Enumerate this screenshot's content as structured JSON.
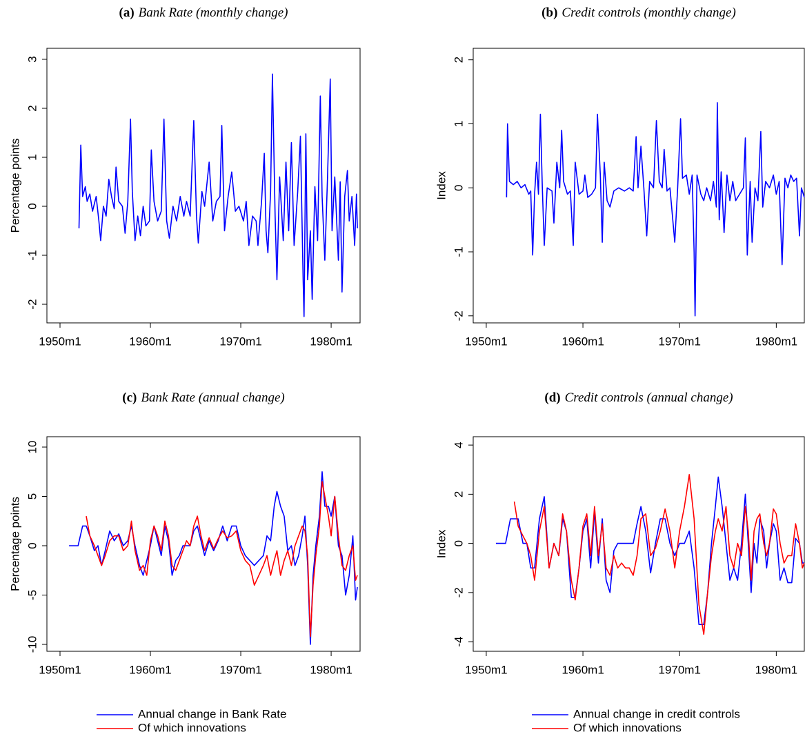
{
  "chart_data": [
    {
      "type": "line",
      "label": "(a)",
      "title": "Bank Rate (monthly change)",
      "ylabel": "Percentage points",
      "xlim": [
        1948.55,
        1983.2
      ],
      "ylim": [
        -2.38,
        3.225
      ],
      "xticks": [
        {
          "value": 1950,
          "label": "1950m1"
        },
        {
          "value": 1960,
          "label": "1960m1"
        },
        {
          "value": 1970,
          "label": "1970m1"
        },
        {
          "value": 1980,
          "label": "1980m1"
        }
      ],
      "yticks": [
        -2,
        -1,
        0,
        1,
        2,
        3
      ],
      "x": [
        1952.1,
        1952.3,
        1952.5,
        1952.8,
        1953.0,
        1953.3,
        1953.6,
        1954.0,
        1954.3,
        1954.5,
        1954.8,
        1955.1,
        1955.4,
        1955.7,
        1956.0,
        1956.2,
        1956.5,
        1956.9,
        1957.2,
        1957.5,
        1957.8,
        1958.0,
        1958.3,
        1958.6,
        1958.9,
        1959.2,
        1959.5,
        1959.9,
        1960.1,
        1960.4,
        1960.8,
        1961.2,
        1961.5,
        1961.8,
        1962.1,
        1962.5,
        1962.9,
        1963.3,
        1963.7,
        1964.0,
        1964.4,
        1964.8,
        1965.1,
        1965.3,
        1965.7,
        1966.0,
        1966.5,
        1966.9,
        1967.3,
        1967.7,
        1967.9,
        1968.2,
        1968.6,
        1969.0,
        1969.4,
        1969.8,
        1970.3,
        1970.6,
        1970.9,
        1971.3,
        1971.7,
        1971.9,
        1972.3,
        1972.6,
        1972.8,
        1973.0,
        1973.3,
        1973.5,
        1973.8,
        1974.0,
        1974.3,
        1974.7,
        1975.0,
        1975.3,
        1975.6,
        1975.9,
        1976.3,
        1976.6,
        1976.9,
        1977.0,
        1977.2,
        1977.4,
        1977.7,
        1977.9,
        1978.2,
        1978.5,
        1978.8,
        1979.0,
        1979.3,
        1979.6,
        1979.9,
        1980.1,
        1980.4,
        1980.8,
        1981.0,
        1981.2,
        1981.5,
        1981.8,
        1982.0,
        1982.3,
        1982.6,
        1982.8,
        1982.9
      ],
      "series": [
        {
          "color": "#0000ff",
          "values": [
            -0.45,
            1.25,
            0.2,
            0.4,
            0.1,
            0.25,
            -0.1,
            0.2,
            -0.3,
            -0.7,
            0.0,
            -0.2,
            0.55,
            0.2,
            -0.05,
            0.8,
            0.1,
            0.0,
            -0.55,
            0.1,
            1.78,
            0.3,
            -0.7,
            -0.2,
            -0.6,
            0.0,
            -0.4,
            -0.3,
            1.15,
            0.1,
            -0.3,
            -0.1,
            1.78,
            -0.3,
            -0.65,
            0.0,
            -0.3,
            0.2,
            -0.2,
            0.1,
            -0.2,
            1.75,
            -0.2,
            -0.75,
            0.3,
            0.0,
            0.9,
            -0.3,
            0.1,
            0.2,
            1.65,
            -0.5,
            0.2,
            0.7,
            -0.1,
            0.0,
            -0.3,
            0.1,
            -0.8,
            -0.2,
            -0.3,
            -0.8,
            0.1,
            1.08,
            -0.5,
            -0.95,
            0.3,
            2.7,
            -0.2,
            -1.5,
            0.6,
            -0.7,
            0.9,
            -0.5,
            1.3,
            -0.8,
            0.3,
            1.43,
            -1.5,
            -2.25,
            1.48,
            -1.5,
            -0.5,
            -1.9,
            0.4,
            -0.7,
            2.25,
            0.2,
            -1.1,
            0.6,
            2.6,
            -0.5,
            0.6,
            -1.1,
            0.5,
            -1.75,
            0.2,
            0.73,
            -0.3,
            0.2,
            -0.8,
            0.25,
            -0.45
          ]
        }
      ]
    },
    {
      "type": "line",
      "label": "(b)",
      "title": "Credit controls (monthly change)",
      "ylabel": "Index",
      "xlim": [
        1948.65,
        1982.9
      ],
      "ylim": [
        -2.11,
        2.18
      ],
      "xticks": [
        {
          "value": 1950,
          "label": "1950m1"
        },
        {
          "value": 1960,
          "label": "1960m1"
        },
        {
          "value": 1970,
          "label": "1970m1"
        },
        {
          "value": 1980,
          "label": "1980m1"
        }
      ],
      "yticks": [
        -2,
        -1,
        0,
        1,
        2
      ],
      "x": [
        1952.1,
        1952.2,
        1952.4,
        1952.8,
        1953.2,
        1953.6,
        1954.0,
        1954.4,
        1954.6,
        1954.8,
        1955.0,
        1955.2,
        1955.4,
        1955.6,
        1955.8,
        1956.0,
        1956.3,
        1956.8,
        1957.0,
        1957.3,
        1957.6,
        1957.8,
        1958.0,
        1958.4,
        1958.7,
        1959.0,
        1959.2,
        1959.6,
        1960.0,
        1960.2,
        1960.5,
        1960.9,
        1961.3,
        1961.5,
        1961.8,
        1962.0,
        1962.2,
        1962.5,
        1962.8,
        1963.2,
        1963.7,
        1964.3,
        1964.8,
        1965.2,
        1965.5,
        1965.7,
        1966.0,
        1966.3,
        1966.6,
        1966.9,
        1967.3,
        1967.6,
        1967.9,
        1968.2,
        1968.4,
        1968.7,
        1969.0,
        1969.5,
        1969.8,
        1970.1,
        1970.3,
        1970.7,
        1971.0,
        1971.3,
        1971.5,
        1971.6,
        1971.8,
        1972.2,
        1972.5,
        1972.8,
        1973.2,
        1973.5,
        1973.8,
        1973.9,
        1974.1,
        1974.3,
        1974.6,
        1974.9,
        1975.2,
        1975.5,
        1975.8,
        1976.2,
        1976.6,
        1976.8,
        1977.0,
        1977.3,
        1977.5,
        1977.8,
        1978.1,
        1978.4,
        1978.6,
        1978.9,
        1979.3,
        1979.7,
        1980.0,
        1980.3,
        1980.6,
        1980.9,
        1981.2,
        1981.5,
        1981.8,
        1982.1,
        1982.4,
        1982.6,
        1982.9
      ],
      "series": [
        {
          "color": "#0000ff",
          "values": [
            -0.15,
            1.0,
            0.1,
            0.05,
            0.1,
            0.0,
            0.05,
            -0.1,
            -0.05,
            -1.05,
            -0.1,
            0.4,
            -0.1,
            1.15,
            0.0,
            -0.9,
            0.0,
            -0.05,
            -0.55,
            0.4,
            0.0,
            0.9,
            0.1,
            -0.1,
            -0.05,
            -0.9,
            0.4,
            -0.1,
            -0.05,
            0.2,
            -0.15,
            -0.1,
            0.0,
            1.15,
            0.2,
            -0.85,
            0.4,
            -0.2,
            -0.3,
            -0.05,
            0.0,
            -0.05,
            0.0,
            -0.05,
            0.8,
            0.0,
            0.65,
            0.0,
            -0.75,
            0.1,
            0.0,
            1.05,
            0.1,
            0.0,
            0.6,
            -0.05,
            0.0,
            -0.85,
            0.0,
            1.08,
            0.15,
            0.2,
            -0.1,
            0.2,
            -1.0,
            -2.0,
            0.2,
            -0.1,
            -0.2,
            0.0,
            -0.2,
            0.1,
            -0.3,
            1.33,
            -0.5,
            0.25,
            -0.7,
            0.2,
            -0.2,
            0.1,
            -0.2,
            -0.1,
            0.0,
            0.78,
            -1.05,
            0.1,
            -0.85,
            0.0,
            -0.2,
            0.88,
            -0.3,
            0.1,
            0.0,
            0.2,
            -0.1,
            0.1,
            -1.2,
            0.15,
            0.0,
            0.2,
            0.1,
            0.15,
            -0.75,
            0.0,
            -0.15
          ]
        }
      ]
    },
    {
      "type": "line",
      "label": "(c)",
      "title": "Bank Rate (annual change)",
      "ylabel": "Percentage points",
      "xlim": [
        1948.55,
        1983.2
      ],
      "ylim": [
        -10.7,
        11.05
      ],
      "xticks": [
        {
          "value": 1950,
          "label": "1950m1"
        },
        {
          "value": 1960,
          "label": "1960m1"
        },
        {
          "value": 1970,
          "label": "1970m1"
        },
        {
          "value": 1980,
          "label": "1980m1"
        }
      ],
      "yticks": [
        -10,
        -5,
        0,
        5,
        10
      ],
      "x": [
        1951.0,
        1952.0,
        1952.5,
        1952.9,
        1953.3,
        1953.8,
        1954.2,
        1954.6,
        1955.0,
        1955.5,
        1956.0,
        1956.5,
        1957.0,
        1957.5,
        1957.9,
        1958.3,
        1958.8,
        1959.2,
        1959.6,
        1960.0,
        1960.4,
        1960.8,
        1961.2,
        1961.6,
        1962.0,
        1962.4,
        1962.8,
        1963.2,
        1963.6,
        1964.0,
        1964.4,
        1964.8,
        1965.2,
        1965.6,
        1966.0,
        1966.5,
        1967.0,
        1967.5,
        1968.0,
        1968.5,
        1969.0,
        1969.5,
        1970.0,
        1970.5,
        1971.0,
        1971.5,
        1972.0,
        1972.5,
        1972.9,
        1973.3,
        1973.7,
        1974.0,
        1974.4,
        1974.8,
        1975.2,
        1975.6,
        1976.0,
        1976.4,
        1976.8,
        1977.1,
        1977.4,
        1977.7,
        1978.0,
        1978.3,
        1978.7,
        1979.0,
        1979.3,
        1979.7,
        1980.0,
        1980.4,
        1980.8,
        1981.2,
        1981.6,
        1982.0,
        1982.4,
        1982.7,
        1982.9
      ],
      "legend": "bottom",
      "series": [
        {
          "name": "Annual change in Bank Rate",
          "color": "#0000ff",
          "values": [
            0,
            0,
            2,
            2,
            1,
            -0.5,
            0,
            -2,
            -0.5,
            1.5,
            0.5,
            1.2,
            0,
            0.5,
            2,
            0,
            -2,
            -3,
            -1.5,
            0,
            2,
            0.5,
            -1,
            2,
            0.5,
            -3,
            -1.5,
            -1,
            0,
            0,
            0,
            1.5,
            2,
            0.5,
            -1,
            0.5,
            -0.5,
            0.5,
            2,
            0.5,
            2,
            2,
            0,
            -1,
            -1.5,
            -2,
            -1.5,
            -1,
            1,
            0.5,
            4,
            5.5,
            4,
            3,
            -0.5,
            0,
            -2,
            -1,
            1,
            3,
            -2,
            -10,
            -3,
            0,
            3,
            7.5,
            4,
            4,
            3,
            5,
            0,
            -1,
            -5,
            -3,
            1,
            -5.5,
            -4.2
          ]
        },
        {
          "name": "Of which innovations",
          "color": "#ff0000",
          "values": [
            null,
            null,
            null,
            3,
            1,
            0,
            -1,
            -2,
            -1,
            0.5,
            1,
            1,
            -0.5,
            0,
            2.5,
            -0.5,
            -2.5,
            -2,
            -3,
            0.5,
            2,
            1,
            -0.5,
            2.5,
            1,
            -2,
            -2.5,
            -1.5,
            -0.5,
            0.5,
            0,
            2,
            3,
            1,
            -0.5,
            0.8,
            -0.3,
            0.7,
            1.5,
            0.8,
            1,
            1.5,
            -0.5,
            -1.5,
            -2,
            -4,
            -3,
            -2,
            -1,
            -3,
            -1.5,
            -0.5,
            -3,
            -1.5,
            -0.5,
            -2,
            0,
            1,
            2,
            1.5,
            -1,
            -9.2,
            -4,
            -1,
            2,
            6.5,
            5,
            3,
            1,
            5,
            1,
            -2,
            -2.5,
            -1,
            0,
            -3.5,
            -3
          ]
        }
      ]
    },
    {
      "type": "line",
      "label": "(d)",
      "title": "Credit controls (annual change)",
      "ylabel": "Index",
      "xlim": [
        1948.65,
        1982.9
      ],
      "ylim": [
        -4.39,
        4.34
      ],
      "xticks": [
        {
          "value": 1950,
          "label": "1950m1"
        },
        {
          "value": 1960,
          "label": "1960m1"
        },
        {
          "value": 1970,
          "label": "1970m1"
        },
        {
          "value": 1980,
          "label": "1980m1"
        }
      ],
      "yticks": [
        -4,
        -2,
        0,
        2,
        4
      ],
      "x": [
        1951.0,
        1952.0,
        1952.5,
        1952.9,
        1953.3,
        1953.8,
        1954.2,
        1954.6,
        1955.0,
        1955.5,
        1956.0,
        1956.5,
        1957.0,
        1957.5,
        1957.9,
        1958.3,
        1958.8,
        1959.2,
        1959.6,
        1960.0,
        1960.4,
        1960.8,
        1961.2,
        1961.6,
        1962.0,
        1962.4,
        1962.8,
        1963.2,
        1963.6,
        1964.0,
        1964.4,
        1964.8,
        1965.2,
        1965.6,
        1966.0,
        1966.5,
        1967.0,
        1967.5,
        1968.0,
        1968.5,
        1969.0,
        1969.5,
        1970.0,
        1970.5,
        1971.0,
        1971.5,
        1972.0,
        1972.5,
        1972.9,
        1973.3,
        1973.7,
        1974.0,
        1974.4,
        1974.8,
        1975.2,
        1975.6,
        1976.0,
        1976.4,
        1976.8,
        1977.1,
        1977.4,
        1977.7,
        1978.0,
        1978.3,
        1978.7,
        1979.0,
        1979.3,
        1979.7,
        1980.0,
        1980.4,
        1980.8,
        1981.2,
        1981.6,
        1982.0,
        1982.4,
        1982.7,
        1982.9
      ],
      "legend": "bottom",
      "series": [
        {
          "name": "Annual change in credit controls",
          "color": "#0000ff",
          "values": [
            0,
            0,
            1,
            1,
            1,
            0,
            0,
            -1,
            -1,
            1,
            1.9,
            -1,
            0,
            -0.5,
            1,
            0.5,
            -2.2,
            -2.2,
            -1,
            0.5,
            1,
            -1,
            1.3,
            -0.8,
            1,
            -1.5,
            -2,
            -0.3,
            0,
            0,
            0,
            0,
            0,
            0.8,
            1.5,
            0.5,
            -1.2,
            0,
            1,
            1,
            0,
            -0.5,
            0,
            0,
            0.5,
            -1,
            -3.3,
            -3.3,
            -2,
            0,
            1.5,
            2.7,
            1.5,
            0,
            -1.5,
            -1,
            -1.5,
            0,
            2,
            0,
            -2,
            0,
            -0.8,
            1,
            0.5,
            -1,
            0,
            0.8,
            0.5,
            -1.5,
            -1,
            -1.6,
            -1.6,
            0.2,
            0,
            -0.8,
            -0.8
          ]
        },
        {
          "name": "Of which innovations",
          "color": "#ff0000",
          "values": [
            null,
            null,
            null,
            1.7,
            0.7,
            0.3,
            0,
            -0.5,
            -1.5,
            0.5,
            1.5,
            -1,
            0,
            -0.5,
            1.2,
            0.5,
            -1.5,
            -2.3,
            -1,
            0.7,
            1.2,
            -0.5,
            1.5,
            -0.5,
            0.8,
            -1,
            -1.3,
            -0.5,
            -1,
            -0.8,
            -1,
            -1,
            -1.3,
            -0.5,
            1,
            1.2,
            -0.5,
            -0.2,
            0.5,
            1.4,
            0.5,
            -1,
            0.5,
            1.5,
            2.8,
            1,
            -2.5,
            -3.7,
            -2,
            -0.5,
            0.5,
            1,
            0.5,
            1.5,
            -0.5,
            -1,
            0,
            -0.5,
            1.5,
            0.5,
            -1.5,
            0.5,
            1,
            1.2,
            0,
            -0.5,
            0,
            1.4,
            1.2,
            0,
            -0.8,
            -0.5,
            -0.5,
            0.8,
            0,
            -1,
            -0.8
          ]
        }
      ]
    }
  ]
}
